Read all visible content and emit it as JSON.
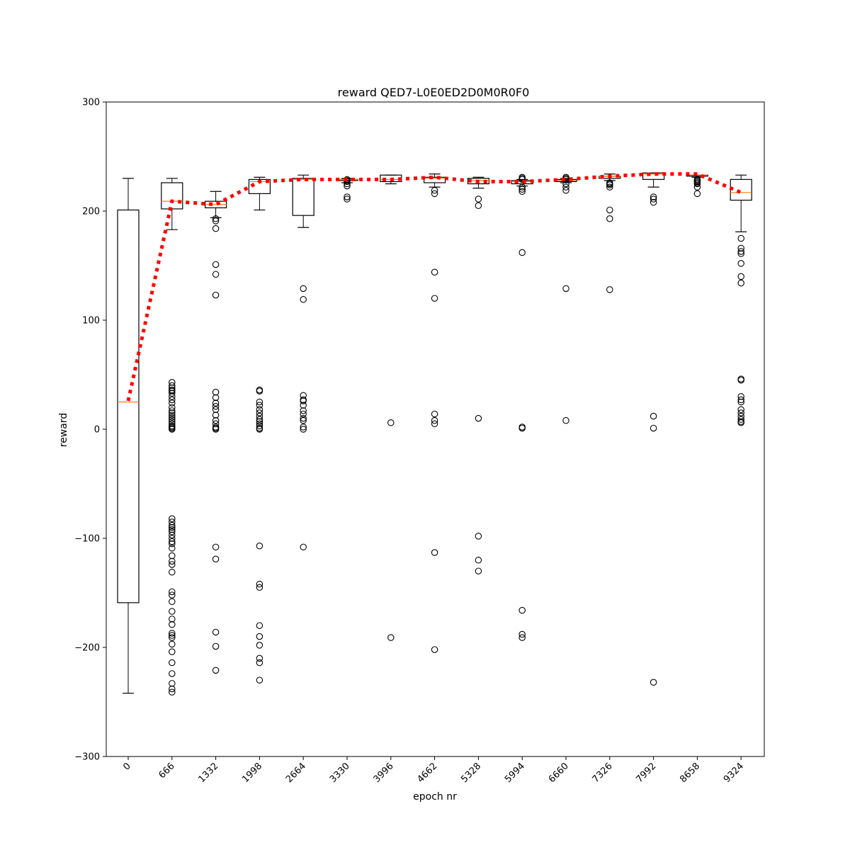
{
  "chart_data": {
    "type": "box",
    "title": "reward QED7-L0E0ED2D0M0R0F0",
    "xlabel": "epoch nr",
    "ylabel": "reward",
    "ylim": [
      -300,
      300
    ],
    "yticks": [
      -300,
      -200,
      -100,
      0,
      100,
      200,
      300
    ],
    "grid": false,
    "colors": {
      "box": "#000000",
      "median": "#ff7f0e",
      "mean_line": "#ff0000"
    },
    "categories": [
      "0",
      "666",
      "1332",
      "1998",
      "2664",
      "3330",
      "3996",
      "4662",
      "5328",
      "5994",
      "6660",
      "7326",
      "7992",
      "8658",
      "9324"
    ],
    "boxes": [
      {
        "whisker_low": -242,
        "q1": -159,
        "median": 25,
        "q3": 201,
        "whisker_high": 230,
        "outliers": []
      },
      {
        "whisker_low": 183,
        "q1": 202,
        "median": 209,
        "q3": 226,
        "whisker_high": 230,
        "outliers": [
          43,
          40,
          38,
          36,
          35,
          33,
          30,
          27,
          24,
          20,
          17,
          15,
          13,
          11,
          9,
          7,
          5,
          3,
          2,
          1,
          0,
          -82,
          -85,
          -88,
          -90,
          -92,
          -94,
          -97,
          -100,
          -103,
          -105,
          -109,
          -116,
          -121,
          -124,
          -131,
          -149,
          -152,
          -158,
          -167,
          -174,
          -179,
          -187,
          -189,
          -191,
          -197,
          -204,
          -214,
          -224,
          -233,
          -238,
          -241
        ]
      },
      {
        "whisker_low": 194,
        "q1": 203,
        "median": 206,
        "q3": 209,
        "whisker_high": 218,
        "outliers": [
          193,
          191,
          184,
          151,
          142,
          123,
          34,
          29,
          24,
          21,
          18,
          13,
          8,
          5,
          2,
          1,
          0,
          -108,
          -119,
          -186,
          -199,
          -221
        ]
      },
      {
        "whisker_low": 201,
        "q1": 216,
        "median": 227,
        "q3": 229,
        "whisker_high": 231,
        "outliers": [
          36,
          35,
          25,
          22,
          18,
          15,
          12,
          9,
          7,
          5,
          3,
          1,
          0,
          -107,
          -142,
          -145,
          -180,
          -190,
          -198,
          -210,
          -214,
          -230
        ]
      },
      {
        "whisker_low": 185,
        "q1": 196,
        "median": 229,
        "q3": 230,
        "whisker_high": 233,
        "outliers": [
          129,
          119,
          31,
          27,
          26,
          22,
          17,
          14,
          10,
          8,
          2,
          0,
          -108
        ]
      },
      {
        "whisker_low": 226,
        "q1": 228,
        "median": 229,
        "q3": 229,
        "whisker_high": 230,
        "outliers": [
          229,
          228,
          227,
          225,
          223,
          213,
          211
        ]
      },
      {
        "whisker_low": 225,
        "q1": 227,
        "median": 229,
        "q3": 233,
        "whisker_high": 233,
        "outliers": [
          6,
          -191
        ]
      },
      {
        "whisker_low": 222,
        "q1": 226,
        "median": 230,
        "q3": 231,
        "whisker_high": 234,
        "outliers": [
          219,
          216,
          144,
          120,
          14,
          8,
          5,
          -113,
          -202
        ]
      },
      {
        "whisker_low": 221,
        "q1": 225,
        "median": 228,
        "q3": 230,
        "whisker_high": 231,
        "outliers": [
          211,
          205,
          10,
          -98,
          -120,
          -130
        ]
      },
      {
        "whisker_low": 223,
        "q1": 225,
        "median": 227,
        "q3": 228,
        "whisker_high": 229,
        "outliers": [
          231,
          230,
          229,
          222,
          220,
          218,
          162,
          2,
          1,
          -166,
          -188,
          -191
        ]
      },
      {
        "whisker_low": 226,
        "q1": 227,
        "median": 228,
        "q3": 229,
        "whisker_high": 230,
        "outliers": [
          231,
          230,
          229,
          225,
          222,
          219,
          129,
          8
        ]
      },
      {
        "whisker_low": 228,
        "q1": 230,
        "median": 232,
        "q3": 232,
        "whisker_high": 234,
        "outliers": [
          226,
          225,
          224,
          222,
          201,
          193,
          128
        ]
      },
      {
        "whisker_low": 222,
        "q1": 229,
        "median": 234,
        "q3": 235,
        "whisker_high": 235,
        "outliers": [
          213,
          211,
          208,
          12,
          1,
          -232
        ]
      },
      {
        "whisker_low": 231,
        "q1": 232,
        "median": 233,
        "q3": 233,
        "whisker_high": 233,
        "outliers": [
          229,
          228,
          227,
          226,
          225,
          222,
          216
        ]
      },
      {
        "whisker_low": 181,
        "q1": 210,
        "median": 217,
        "q3": 229,
        "whisker_high": 233,
        "outliers": [
          175,
          166,
          163,
          161,
          152,
          140,
          134,
          46,
          45,
          30,
          27,
          25,
          18,
          15,
          12,
          9,
          7,
          6
        ]
      }
    ],
    "mean_line": {
      "name": "",
      "values": [
        26,
        209,
        206,
        227,
        229,
        229,
        229,
        231,
        227,
        227,
        229,
        232,
        234,
        234,
        217
      ]
    }
  }
}
